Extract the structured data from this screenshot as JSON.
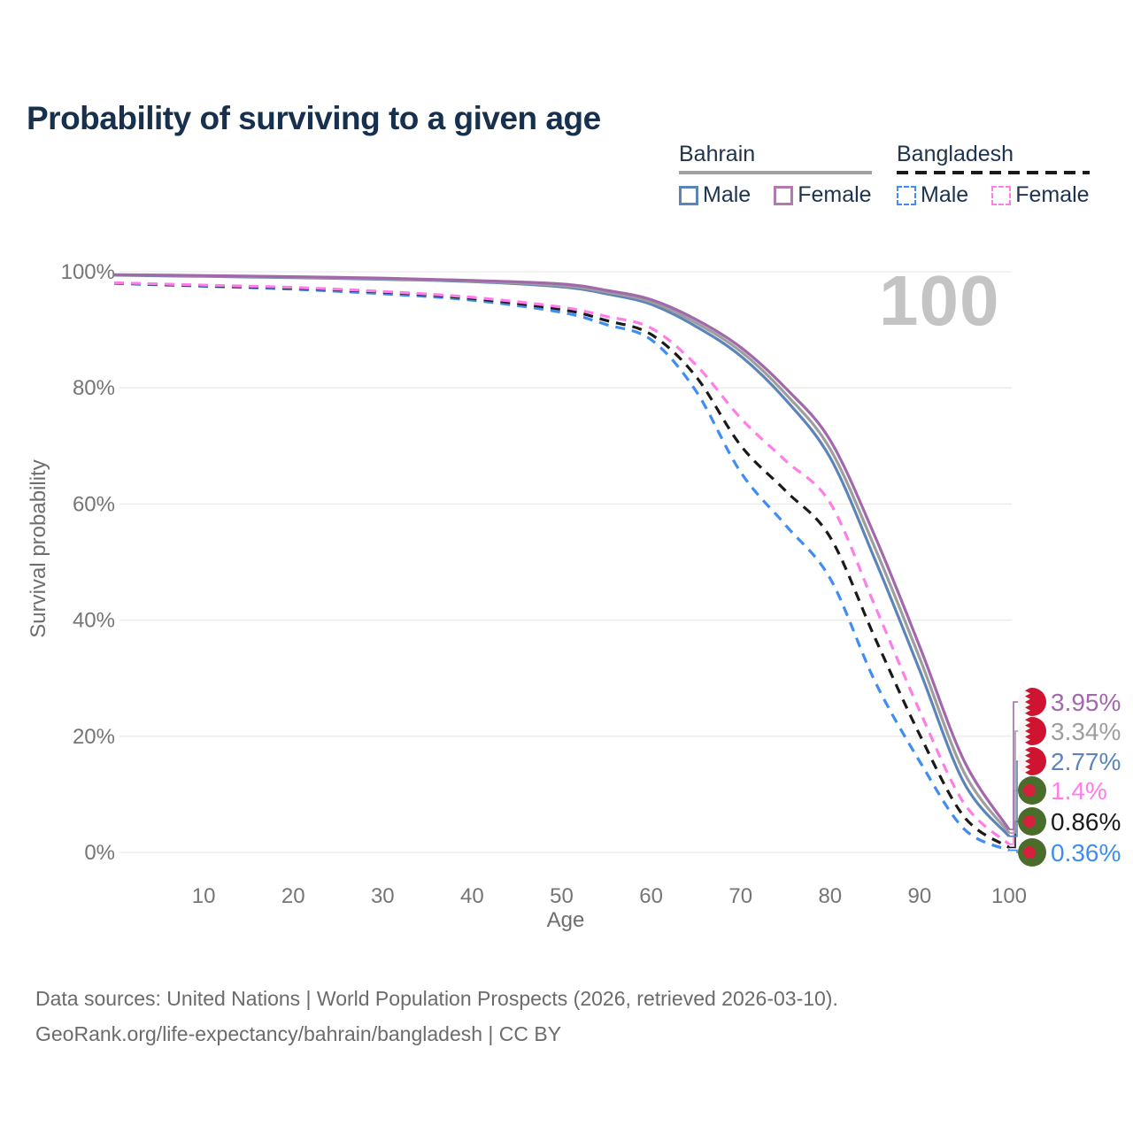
{
  "header": {
    "title": "Probability of surviving to a given age"
  },
  "legend": {
    "position": "top-right",
    "groups": [
      {
        "name": "Bahrain",
        "line_style": "solid",
        "rule_color": "#a0a0a0",
        "items": [
          {
            "label": "Male",
            "color": "#5b84bb"
          },
          {
            "label": "Female",
            "color": "#b279ae"
          }
        ]
      },
      {
        "name": "Bangladesh",
        "line_style": "dashed",
        "rule_color": "#1a1a1a",
        "items": [
          {
            "label": "Male",
            "color": "#3f8df2"
          },
          {
            "label": "Female",
            "color": "#ff7de9"
          }
        ]
      }
    ]
  },
  "watermark": "100",
  "chart_data": {
    "type": "line",
    "title": "Probability of surviving to a given age",
    "xlabel": "Age",
    "ylabel": "Survival probability",
    "xlim": [
      0,
      100
    ],
    "ylim": [
      0,
      100
    ],
    "grid": "horizontal-only",
    "x_ticks": [
      10,
      20,
      30,
      40,
      50,
      60,
      70,
      80,
      90,
      100
    ],
    "y_ticks": [
      0,
      20,
      40,
      60,
      80,
      100
    ],
    "y_tick_suffix": "%",
    "x": [
      0,
      10,
      20,
      30,
      40,
      50,
      55,
      60,
      65,
      70,
      75,
      80,
      85,
      90,
      95,
      100
    ],
    "series": [
      {
        "name": "Bangladesh Male",
        "country": "Bangladesh",
        "sex": "male",
        "color": "#3f8df2",
        "dash": true,
        "flag": "bangladesh",
        "end_label": "0.36%",
        "values": [
          98.0,
          97.5,
          97.0,
          96.2,
          95.1,
          93.0,
          90.9,
          88.3,
          79.5,
          65.5,
          56.4,
          47.2,
          29.5,
          15.7,
          4.0,
          0.36
        ]
      },
      {
        "name": "Bangladesh Both",
        "country": "Bangladesh",
        "sex": "both",
        "color": "#1a1a1a",
        "dash": true,
        "flag": "bangladesh",
        "end_label": "0.86%",
        "values": [
          98.05,
          97.6,
          97.2,
          96.5,
          95.4,
          93.5,
          91.6,
          89.2,
          82.0,
          70.1,
          62.3,
          54.3,
          37.0,
          20.3,
          6.1,
          0.86
        ]
      },
      {
        "name": "Bangladesh Female",
        "country": "Bangladesh",
        "sex": "female",
        "color": "#ff7de9",
        "dash": true,
        "flag": "bangladesh",
        "end_label": "1.4%",
        "values": [
          98.1,
          97.7,
          97.3,
          96.6,
          95.6,
          93.9,
          92.3,
          90.3,
          84.0,
          74.8,
          67.5,
          60.2,
          42.5,
          24.4,
          8.4,
          1.4
        ]
      },
      {
        "name": "Bahrain Male",
        "country": "Bahrain",
        "sex": "male",
        "color": "#5b84bb",
        "dash": false,
        "flag": "bahrain",
        "end_label": "2.77%",
        "values": [
          99.4,
          99.2,
          99.0,
          98.7,
          98.3,
          97.4,
          96.2,
          94.4,
          90.6,
          85.5,
          78.0,
          68.0,
          50.5,
          31.4,
          11.9,
          2.77
        ]
      },
      {
        "name": "Bahrain Both",
        "country": "Bahrain",
        "sex": "both",
        "color": "#9e9e9e",
        "dash": false,
        "flag": "bahrain",
        "end_label": "3.34%",
        "values": [
          99.45,
          99.3,
          99.05,
          98.8,
          98.4,
          97.6,
          96.5,
          94.8,
          91.2,
          86.3,
          79.0,
          69.5,
          52.5,
          33.5,
          13.7,
          3.34
        ]
      },
      {
        "name": "Bahrain Female",
        "country": "Bahrain",
        "sex": "female",
        "color": "#a268ab",
        "dash": false,
        "flag": "bahrain",
        "end_label": "3.95%",
        "values": [
          99.5,
          99.35,
          99.15,
          98.9,
          98.5,
          97.9,
          96.8,
          95.2,
          91.8,
          87.0,
          80.0,
          71.0,
          54.5,
          35.5,
          15.7,
          3.95
        ]
      }
    ],
    "end_label_order": [
      "3.95%",
      "3.34%",
      "2.77%",
      "1.4%",
      "0.86%",
      "0.36%"
    ],
    "flag_colors": {
      "bahrain_red": "#cf1431",
      "bahrain_white": "#f7f5f5",
      "bangladesh_green": "#4a6d2c",
      "bangladesh_red": "#d6203d"
    }
  },
  "footer": {
    "line1": "Data sources: United Nations | World Population Prospects (2026, retrieved 2026-03-10).",
    "line2": "GeoRank.org/life-expectancy/bahrain/bangladesh | CC BY"
  }
}
